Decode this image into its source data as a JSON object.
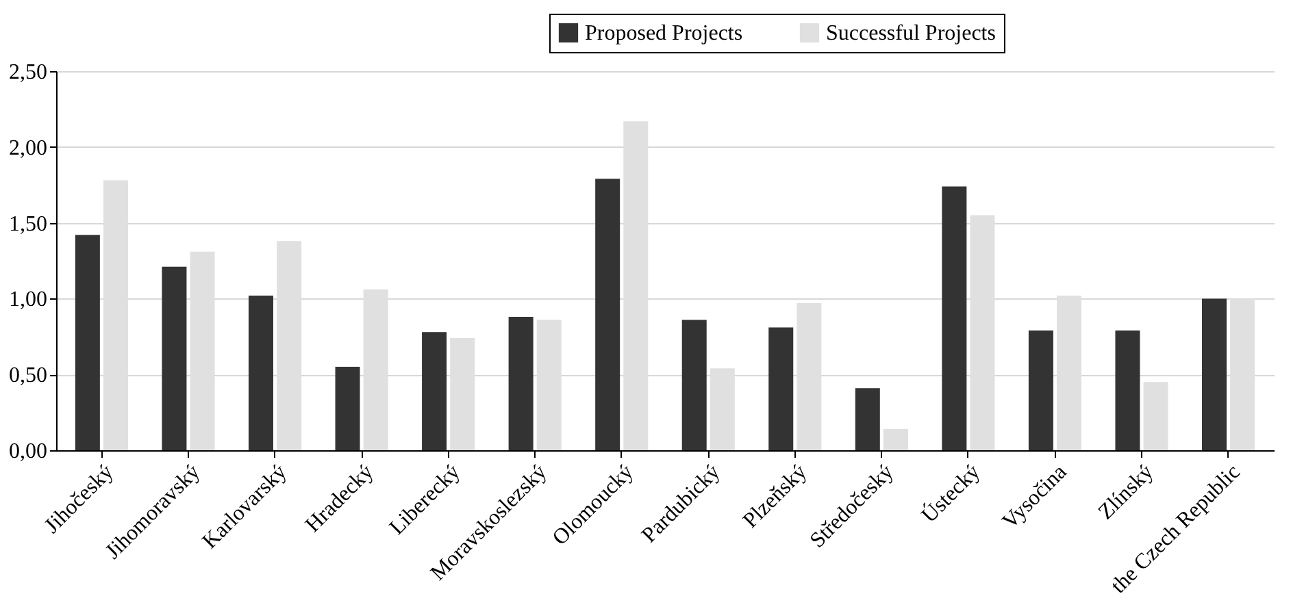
{
  "chart_data": {
    "type": "bar",
    "categories": [
      "Jihočeský",
      "Jihomoravský",
      "Karlovarský",
      "Hradecký",
      "Liberecký",
      "Moravskoslezský",
      "Olomoucký",
      "Pardubický",
      "Plzeňský",
      "Středočeský",
      "Ústecký",
      "Vysočina",
      "Zlínský",
      "the Czech Republic"
    ],
    "series": [
      {
        "name": "Proposed Projects",
        "color": "#333333",
        "values": [
          1.42,
          1.21,
          1.02,
          0.55,
          0.78,
          0.88,
          1.79,
          0.86,
          0.81,
          0.41,
          1.74,
          0.79,
          0.79,
          1.0
        ]
      },
      {
        "name": "Successful Projects",
        "color": "#e0e0e0",
        "values": [
          1.78,
          1.31,
          1.38,
          1.06,
          0.74,
          0.86,
          2.17,
          0.54,
          0.97,
          0.14,
          1.55,
          1.02,
          0.45,
          1.0
        ]
      }
    ],
    "ylim": [
      0,
      2.5
    ],
    "yticks": [
      {
        "value": 0,
        "label": "0,00"
      },
      {
        "value": 0.5,
        "label": "0,50"
      },
      {
        "value": 1,
        "label": "1,00"
      },
      {
        "value": 1.5,
        "label": "1,50"
      },
      {
        "value": 2,
        "label": "2,00"
      },
      {
        "value": 2.5,
        "label": "2,50"
      }
    ],
    "grid": "y",
    "legend": "top right"
  }
}
